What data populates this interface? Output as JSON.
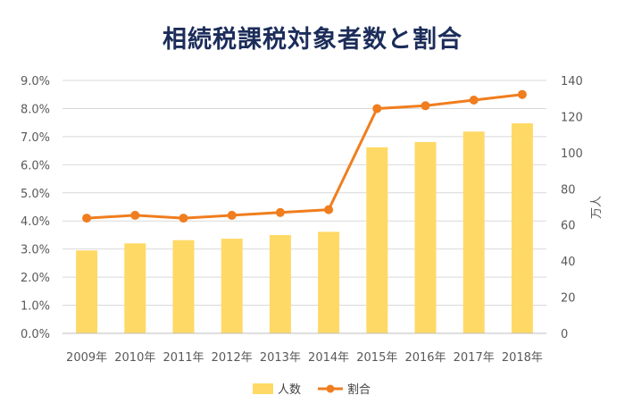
{
  "chart_data": {
    "type": "bar",
    "title": "相続税課税対象者数と割合",
    "categories": [
      "2009年",
      "2010年",
      "2011年",
      "2012年",
      "2013年",
      "2014年",
      "2015年",
      "2016年",
      "2017年",
      "2018年"
    ],
    "series": [
      {
        "name": "人数",
        "type": "bar",
        "axis": "right",
        "color": "#ffd966",
        "values": [
          45.9,
          49.8,
          51.6,
          52.4,
          54.4,
          56.2,
          103.0,
          105.9,
          111.7,
          116.3
        ]
      },
      {
        "name": "割合",
        "type": "line",
        "axis": "left",
        "color": "#f07d1e",
        "values": [
          4.1,
          4.2,
          4.1,
          4.2,
          4.3,
          4.4,
          8.0,
          8.1,
          8.3,
          8.5
        ]
      }
    ],
    "y_left": {
      "ylim": [
        0,
        9.0
      ],
      "ticks": [
        "0.0%",
        "1.0%",
        "2.0%",
        "3.0%",
        "4.0%",
        "5.0%",
        "6.0%",
        "7.0%",
        "8.0%",
        "9.0%"
      ]
    },
    "y_right": {
      "label": "万人",
      "ylim": [
        0,
        140
      ],
      "ticks": [
        "0",
        "20",
        "40",
        "60",
        "80",
        "100",
        "120",
        "140"
      ]
    },
    "grid": true,
    "legend_position": "bottom"
  }
}
